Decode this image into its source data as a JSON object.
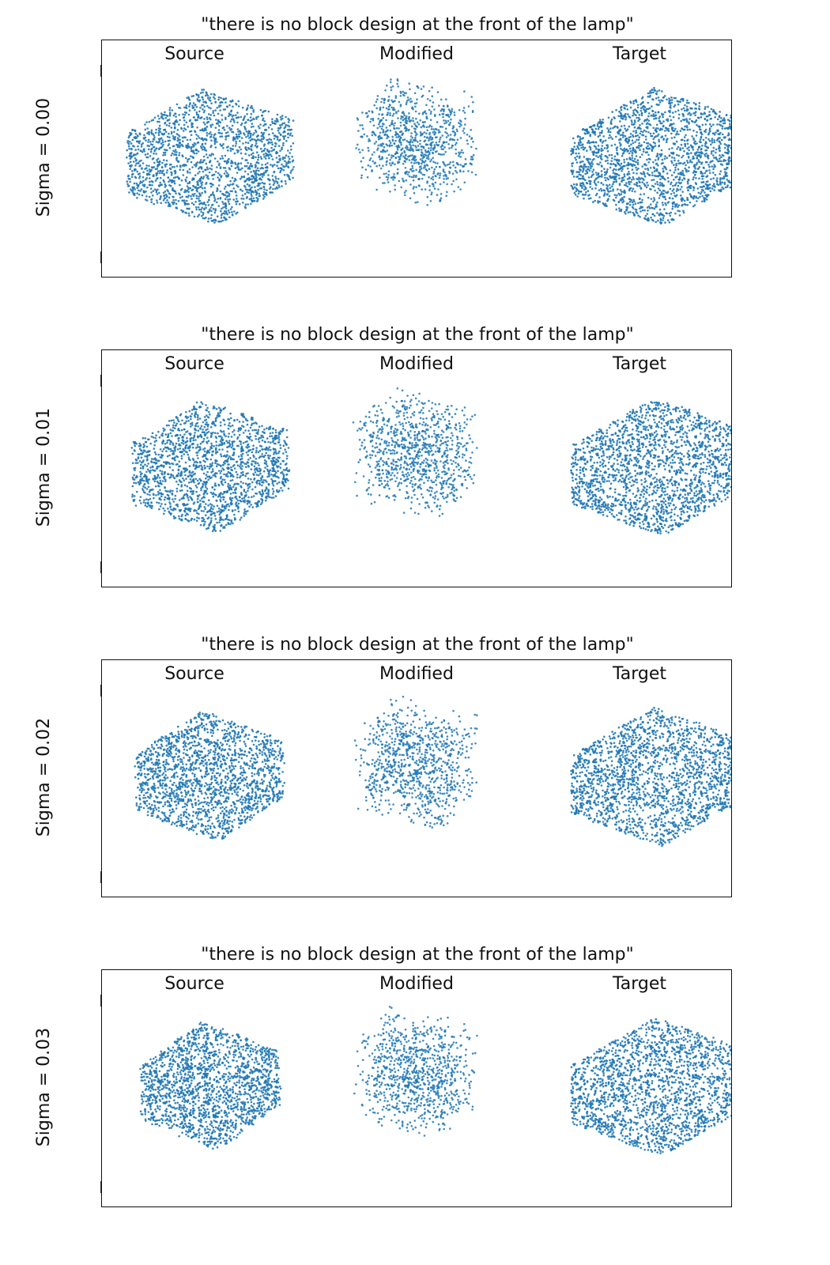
{
  "figure": {
    "panels": [
      {
        "title": "\"there is no block design at the front of the lamp\"",
        "row_label": "Sigma = 0.00",
        "columns": [
          "Source",
          "Modified",
          "Target"
        ]
      },
      {
        "title": "\"there is no block design at the front of the lamp\"",
        "row_label": "Sigma = 0.01",
        "columns": [
          "Source",
          "Modified",
          "Target"
        ]
      },
      {
        "title": "\"there is no block design at the front of the lamp\"",
        "row_label": "Sigma = 0.02",
        "columns": [
          "Source",
          "Modified",
          "Target"
        ]
      },
      {
        "title": "\"there is no block design at the front of the lamp\"",
        "row_label": "Sigma = 0.03",
        "columns": [
          "Source",
          "Modified",
          "Target"
        ]
      }
    ],
    "point_color": "#1f77b4",
    "noise_levels": [
      0.0,
      0.01,
      0.02,
      0.03
    ]
  }
}
